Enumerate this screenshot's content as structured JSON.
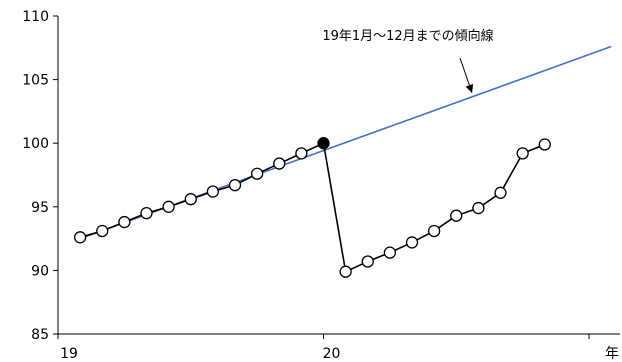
{
  "chart_data": {
    "type": "line",
    "title": "",
    "xlabel": "年",
    "ylabel": "",
    "ylim": [
      85,
      110
    ],
    "y_ticks": [
      "85",
      "90",
      "95",
      "100",
      "105",
      "110"
    ],
    "x_ticks": [
      "19",
      "20"
    ],
    "grid": false,
    "legend": "none",
    "series": [
      {
        "name": "",
        "style": "line-with-open-circle-markers",
        "color": "#000000",
        "segments": [
          {
            "x": [
              1,
              2,
              3,
              4,
              5,
              6,
              7,
              8,
              9,
              10,
              11,
              12
            ],
            "y": [
              92.6,
              93.1,
              93.8,
              94.5,
              95.0,
              95.6,
              96.2,
              96.7,
              97.6,
              98.4,
              99.2,
              100.0
            ]
          },
          {
            "x": [
              12,
              13,
              14,
              15,
              16,
              17,
              18,
              19,
              20,
              21,
              22
            ],
            "y": [
              100.0,
              89.9,
              90.7,
              91.4,
              92.2,
              93.1,
              94.3,
              94.9,
              96.1,
              99.2,
              99.9
            ]
          }
        ],
        "highlight_point": {
          "x": 12,
          "y": 100.0,
          "fill": "#000000"
        }
      },
      {
        "name": "",
        "style": "trend-line",
        "color": "#4472c4",
        "x": [
          1,
          25
        ],
        "y": [
          92.5,
          107.6
        ]
      }
    ],
    "annotations": [
      {
        "text": "19年1月～12月までの傾向線",
        "target": "trend-line"
      }
    ]
  }
}
